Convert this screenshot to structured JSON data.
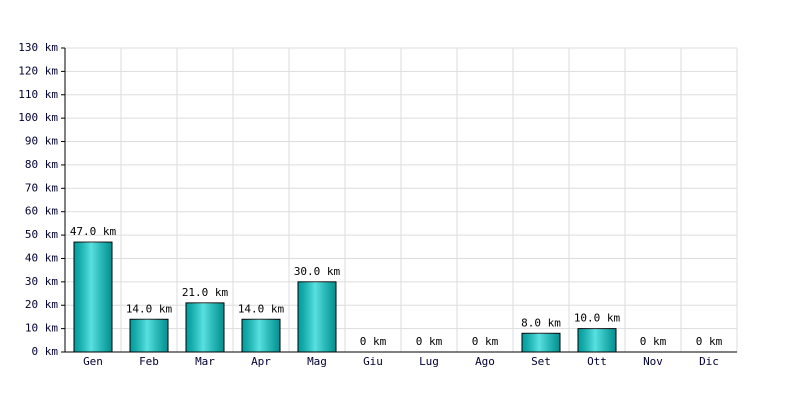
{
  "chart_data": {
    "type": "bar",
    "categories": [
      "Gen",
      "Feb",
      "Mar",
      "Apr",
      "Mag",
      "Giu",
      "Lug",
      "Ago",
      "Set",
      "Ott",
      "Nov",
      "Dic"
    ],
    "values": [
      47,
      14,
      21,
      14,
      30,
      0,
      0,
      0,
      8,
      10,
      0,
      0
    ],
    "value_labels": [
      "47.0 km",
      "14.0 km",
      "21.0 km",
      "14.0 km",
      "30.0 km",
      "0 km",
      "0 km",
      "0 km",
      "8.0 km",
      "10.0 km",
      "0 km",
      "0 km"
    ],
    "color": "#00d0d0",
    "ylim": [
      0,
      130
    ],
    "yticks": [
      {
        "value": 0,
        "label": "0 km"
      },
      {
        "value": 10,
        "label": "10 km"
      },
      {
        "value": 20,
        "label": "20 km"
      },
      {
        "value": 30,
        "label": "30 km"
      },
      {
        "value": 40,
        "label": "40 km"
      },
      {
        "value": 50,
        "label": "50 km"
      },
      {
        "value": 60,
        "label": "60 km"
      },
      {
        "value": 70,
        "label": "70 km"
      },
      {
        "value": 80,
        "label": "80 km"
      },
      {
        "value": 90,
        "label": "90 km"
      },
      {
        "value": 100,
        "label": "100 km"
      },
      {
        "value": 110,
        "label": "110 km"
      },
      {
        "value": 120,
        "label": "120 km"
      },
      {
        "value": 130,
        "label": "130 km"
      }
    ],
    "grid": true
  }
}
